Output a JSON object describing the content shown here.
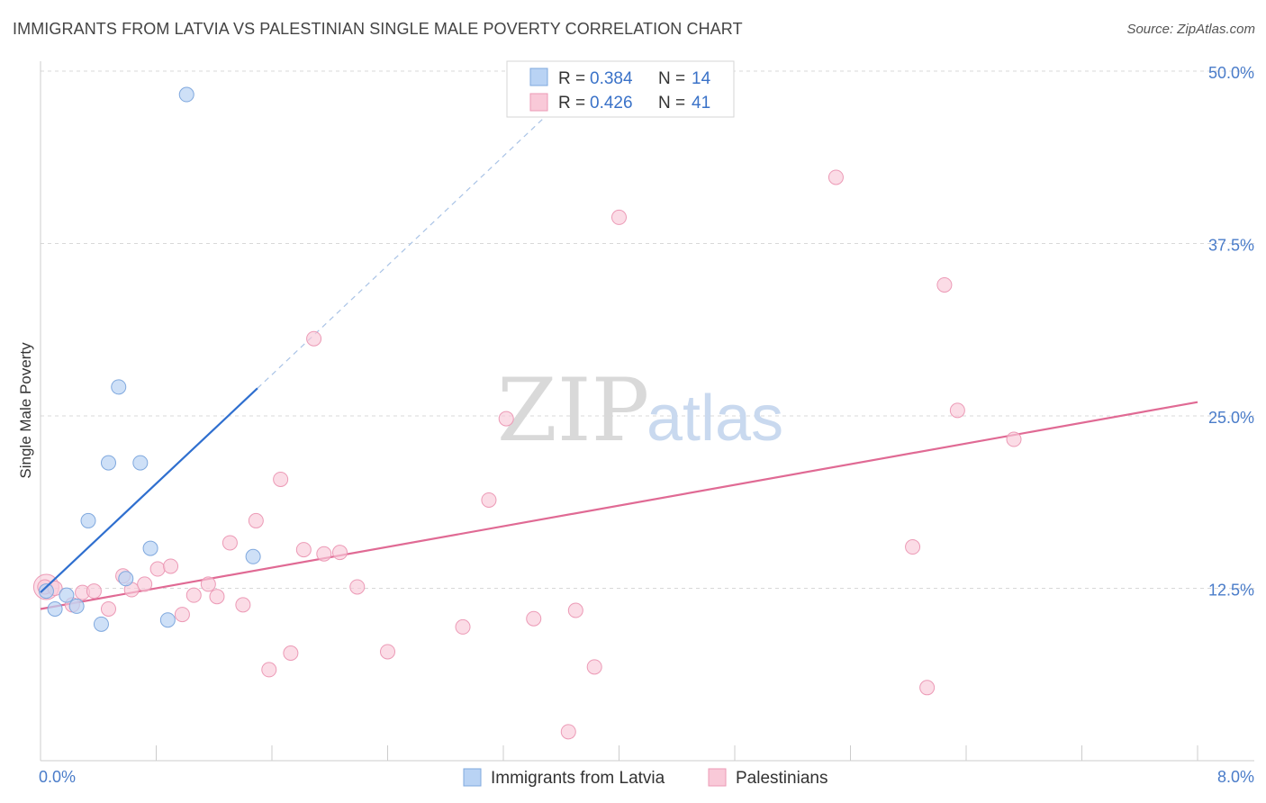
{
  "title": "IMMIGRANTS FROM LATVIA VS PALESTINIAN SINGLE MALE POVERTY CORRELATION CHART",
  "source": "Source: ZipAtlas.com",
  "watermark": {
    "zip": "ZIP",
    "atlas": "atlas"
  },
  "colors": {
    "latvia_fill": "#b9d3f4",
    "latvia_stroke": "#7fa8de",
    "latvia_line": "#2f6fcf",
    "pal_fill": "#f9c9d8",
    "pal_stroke": "#ec9ab6",
    "pal_line": "#e06a94",
    "grid": "#d8d8d8",
    "axis_text": "#4a7cc9"
  },
  "legend": {
    "rows": [
      {
        "r_label": "R = ",
        "r_value": "0.384",
        "n_label": "N = ",
        "n_value": "14"
      },
      {
        "r_label": "R = ",
        "r_value": "0.426",
        "n_label": "N = ",
        "n_value": "41"
      }
    ]
  },
  "chart_data": {
    "type": "scatter",
    "title": "IMMIGRANTS FROM LATVIA VS PALESTINIAN SINGLE MALE POVERTY CORRELATION CHART",
    "xlabel": "",
    "ylabel": "Single Male Poverty",
    "xlim": [
      0,
      8
    ],
    "ylim": [
      0,
      50
    ],
    "x_tick_labels": [
      "0.0%",
      "8.0%"
    ],
    "y_ticks": [
      12.5,
      25.0,
      37.5,
      50.0
    ],
    "y_tick_labels": [
      "12.5%",
      "25.0%",
      "37.5%",
      "50.0%"
    ],
    "grid": true,
    "legend_placement": "top-center",
    "series": [
      {
        "name": "Immigrants from Latvia",
        "points": [
          [
            0.04,
            12.3
          ],
          [
            0.1,
            11.0
          ],
          [
            0.18,
            12.0
          ],
          [
            0.25,
            11.2
          ],
          [
            0.33,
            17.4
          ],
          [
            0.42,
            9.9
          ],
          [
            0.47,
            21.6
          ],
          [
            0.54,
            27.1
          ],
          [
            0.59,
            13.2
          ],
          [
            0.69,
            21.6
          ],
          [
            0.76,
            15.4
          ],
          [
            0.88,
            10.2
          ],
          [
            1.01,
            48.3
          ],
          [
            1.47,
            14.8
          ]
        ],
        "trend": {
          "x0": 0.0,
          "y0": 12.2,
          "x1": 1.5,
          "y1": 27.0,
          "dashed_to_x": 3.5,
          "dashed_to_y": 46.8
        }
      },
      {
        "name": "Palestinians",
        "points": [
          [
            0.03,
            12.6
          ],
          [
            0.1,
            12.5
          ],
          [
            0.22,
            11.3
          ],
          [
            0.29,
            12.2
          ],
          [
            0.37,
            12.3
          ],
          [
            0.47,
            11.0
          ],
          [
            0.57,
            13.4
          ],
          [
            0.63,
            12.4
          ],
          [
            0.72,
            12.8
          ],
          [
            0.81,
            13.9
          ],
          [
            0.9,
            14.1
          ],
          [
            0.98,
            10.6
          ],
          [
            1.06,
            12.0
          ],
          [
            1.16,
            12.8
          ],
          [
            1.22,
            11.9
          ],
          [
            1.31,
            15.8
          ],
          [
            1.4,
            11.3
          ],
          [
            1.49,
            17.4
          ],
          [
            1.58,
            6.6
          ],
          [
            1.66,
            20.4
          ],
          [
            1.73,
            7.8
          ],
          [
            1.82,
            15.3
          ],
          [
            1.89,
            30.6
          ],
          [
            1.96,
            15.0
          ],
          [
            2.07,
            15.1
          ],
          [
            2.19,
            12.6
          ],
          [
            2.4,
            7.9
          ],
          [
            2.92,
            9.7
          ],
          [
            3.1,
            18.9
          ],
          [
            3.22,
            24.8
          ],
          [
            3.41,
            10.3
          ],
          [
            3.65,
            2.1
          ],
          [
            3.7,
            10.9
          ],
          [
            3.83,
            6.8
          ],
          [
            4.0,
            39.4
          ],
          [
            5.5,
            42.3
          ],
          [
            6.03,
            15.5
          ],
          [
            6.13,
            5.3
          ],
          [
            6.25,
            34.5
          ],
          [
            6.34,
            25.4
          ],
          [
            6.73,
            23.3
          ]
        ],
        "trend": {
          "x0": 0.0,
          "y0": 11.0,
          "x1": 8.0,
          "y1": 26.0
        }
      }
    ]
  },
  "bottom_legend": [
    {
      "label": "Immigrants from Latvia"
    },
    {
      "label": "Palestinians"
    }
  ]
}
